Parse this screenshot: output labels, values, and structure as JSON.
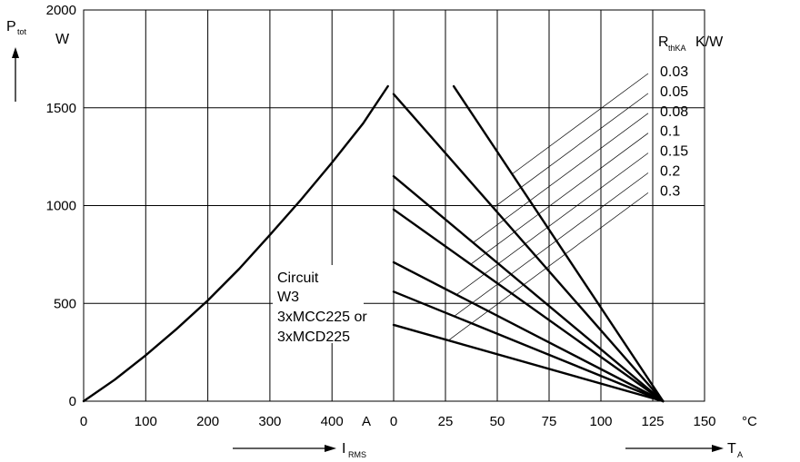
{
  "chart_data": {
    "type": "line",
    "y_axis": {
      "symbol": "P",
      "subscript": "tot",
      "unit": "W",
      "range": [
        0,
        2000
      ],
      "ticks": [
        "0",
        "500",
        "1000",
        "1500",
        "2000"
      ]
    },
    "left_panel": {
      "x_symbol": "I",
      "x_subscript": "RMS",
      "x_unit": "A",
      "x_range": [
        0,
        500
      ],
      "x_ticks": [
        "0",
        "100",
        "200",
        "300",
        "400"
      ],
      "series": [
        {
          "name": "Circuit W3 3xMCC225 or 3xMCD225",
          "x": [
            0,
            50,
            100,
            150,
            200,
            250,
            300,
            350,
            400,
            450,
            490
          ],
          "y": [
            0,
            110,
            235,
            370,
            515,
            675,
            850,
            1030,
            1220,
            1420,
            1610
          ]
        }
      ]
    },
    "right_panel": {
      "x_symbol": "T",
      "x_subscript": "A",
      "x_unit": "°C",
      "x_range": [
        0,
        150
      ],
      "x_ticks": [
        "0",
        "25",
        "50",
        "75",
        "100",
        "125",
        "150"
      ],
      "series_label": {
        "symbol": "R",
        "subscript": "thKA",
        "unit": "K/W"
      },
      "endpoint": [
        130,
        0
      ],
      "series": [
        {
          "name": "0.03",
          "start_x": 29,
          "start_y": 1610
        },
        {
          "name": "0.05",
          "start_x": 0,
          "start_y": 1570
        },
        {
          "name": "0.08",
          "start_x": 0,
          "start_y": 1150
        },
        {
          "name": "0.1",
          "start_x": 0,
          "start_y": 980
        },
        {
          "name": "0.15",
          "start_x": 0,
          "start_y": 710
        },
        {
          "name": "0.2",
          "start_x": 0,
          "start_y": 560
        },
        {
          "name": "0.3",
          "start_x": 0,
          "start_y": 390
        }
      ]
    },
    "annotation": [
      "Circuit",
      "W3",
      "3xMCC225 or",
      "3xMCD225"
    ],
    "grid": true
  }
}
